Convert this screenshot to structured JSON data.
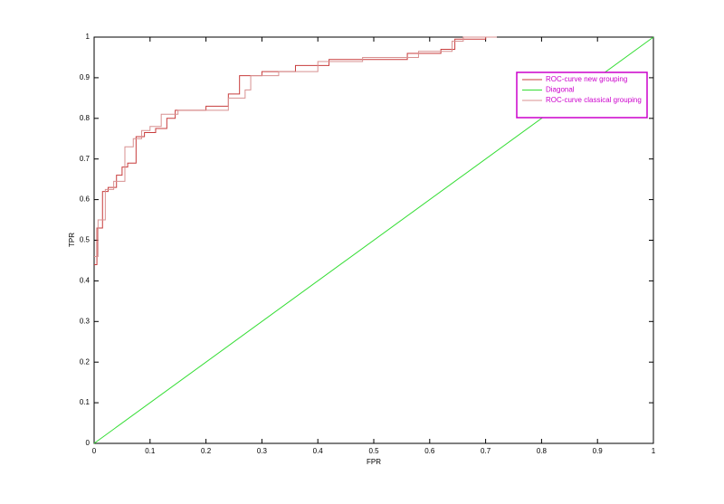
{
  "chart_data": {
    "type": "line",
    "xlabel": "FPR",
    "ylabel": "TPR",
    "xlim": [
      0,
      1
    ],
    "ylim": [
      0,
      1
    ],
    "xticks": [
      0,
      0.1,
      0.2,
      0.3,
      0.4,
      0.5,
      0.6,
      0.7,
      0.8,
      0.9,
      1
    ],
    "yticks": [
      0,
      0.1,
      0.2,
      0.3,
      0.4,
      0.5,
      0.6,
      0.7,
      0.8,
      0.9,
      1
    ],
    "grid": false,
    "legend": "upper right",
    "legend_color": "#cc00cc",
    "series": [
      {
        "name": "ROC-curve new grouping",
        "color": "#c83c3c",
        "x": [
          0,
          0.005,
          0.005,
          0.015,
          0.015,
          0.025,
          0.025,
          0.04,
          0.04,
          0.05,
          0.05,
          0.06,
          0.06,
          0.075,
          0.075,
          0.09,
          0.09,
          0.11,
          0.11,
          0.13,
          0.13,
          0.145,
          0.145,
          0.2,
          0.2,
          0.24,
          0.24,
          0.26,
          0.26,
          0.3,
          0.3,
          0.36,
          0.36,
          0.42,
          0.42,
          0.56,
          0.56,
          0.62,
          0.62,
          0.645,
          0.645,
          0.7,
          0.7,
          0.72
        ],
        "values": [
          0.44,
          0.44,
          0.53,
          0.53,
          0.62,
          0.62,
          0.63,
          0.63,
          0.66,
          0.66,
          0.68,
          0.68,
          0.69,
          0.69,
          0.755,
          0.755,
          0.765,
          0.765,
          0.775,
          0.775,
          0.8,
          0.8,
          0.82,
          0.82,
          0.83,
          0.83,
          0.86,
          0.86,
          0.905,
          0.905,
          0.915,
          0.915,
          0.93,
          0.93,
          0.945,
          0.945,
          0.96,
          0.96,
          0.97,
          0.97,
          0.995,
          0.995,
          1,
          1
        ]
      },
      {
        "name": "Diagonal",
        "color": "#33dd33",
        "x": [
          0,
          1
        ],
        "values": [
          0,
          1
        ]
      },
      {
        "name": "ROC-curve classical grouping",
        "color": "#d89090",
        "x": [
          0,
          0.007,
          0.007,
          0.02,
          0.02,
          0.035,
          0.035,
          0.055,
          0.055,
          0.07,
          0.07,
          0.085,
          0.085,
          0.1,
          0.1,
          0.12,
          0.12,
          0.15,
          0.15,
          0.24,
          0.24,
          0.27,
          0.27,
          0.28,
          0.28,
          0.33,
          0.33,
          0.4,
          0.4,
          0.48,
          0.48,
          0.58,
          0.58,
          0.64,
          0.64,
          0.66,
          0.66,
          0.72
        ],
        "values": [
          0.46,
          0.46,
          0.55,
          0.55,
          0.625,
          0.625,
          0.645,
          0.645,
          0.73,
          0.73,
          0.75,
          0.75,
          0.77,
          0.77,
          0.78,
          0.78,
          0.81,
          0.81,
          0.82,
          0.82,
          0.85,
          0.85,
          0.87,
          0.87,
          0.905,
          0.905,
          0.915,
          0.915,
          0.94,
          0.94,
          0.95,
          0.95,
          0.965,
          0.965,
          0.99,
          0.99,
          1,
          1
        ]
      }
    ]
  }
}
